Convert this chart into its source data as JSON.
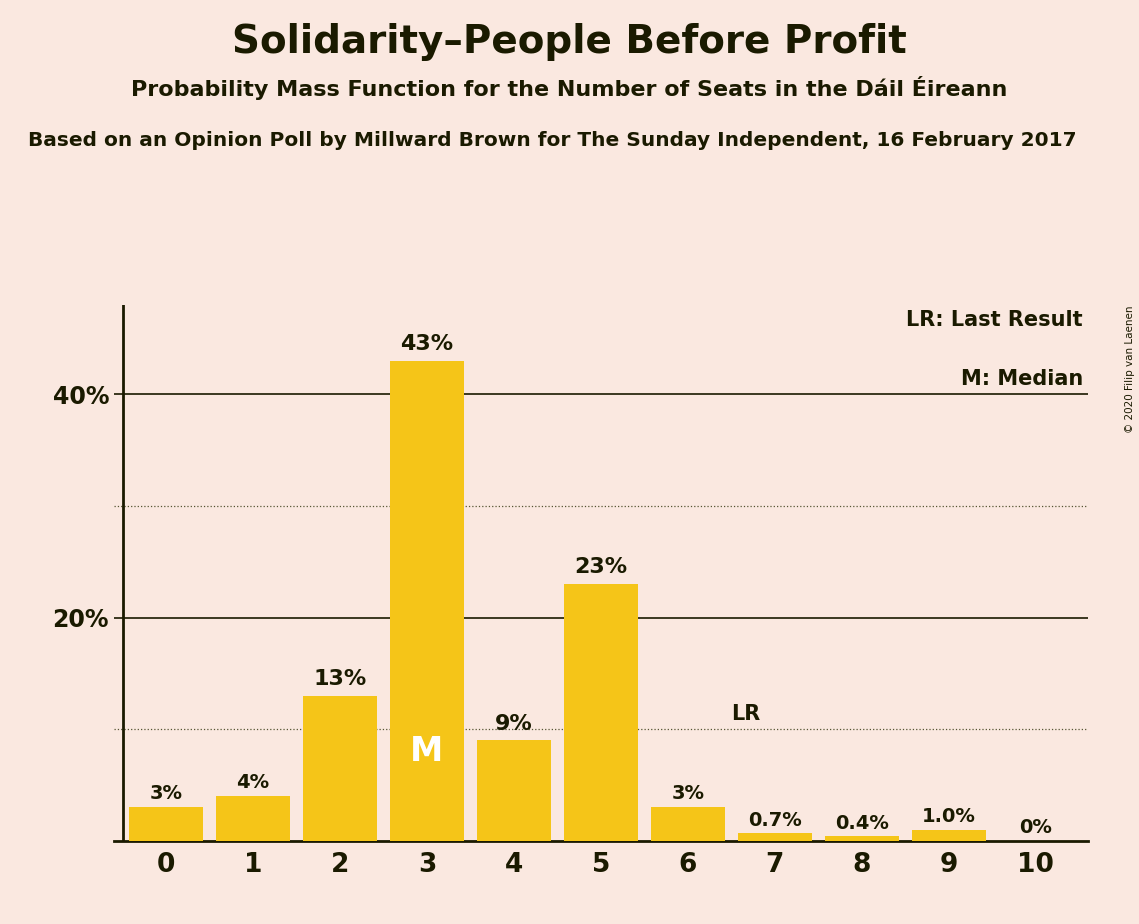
{
  "title": "Solidarity–People Before Profit",
  "subtitle": "Probability Mass Function for the Number of Seats in the Dáil Éireann",
  "source": "Based on an Opinion Poll by Millward Brown for The Sunday Independent, 16 February 2017",
  "copyright": "© 2020 Filip van Laenen",
  "categories": [
    0,
    1,
    2,
    3,
    4,
    5,
    6,
    7,
    8,
    9,
    10
  ],
  "values": [
    3,
    4,
    13,
    43,
    9,
    23,
    3,
    0.7,
    0.4,
    1.0,
    0
  ],
  "labels": [
    "3%",
    "4%",
    "13%",
    "43%",
    "9%",
    "23%",
    "3%",
    "0.7%",
    "0.4%",
    "1.0%",
    "0%"
  ],
  "bar_color": "#F5C518",
  "background_color": "#FAE8E0",
  "text_color": "#1a1a00",
  "ylim": [
    0,
    48
  ],
  "yticks": [
    20,
    40
  ],
  "ytick_labels": [
    "20%",
    "40%"
  ],
  "median_bar": 3,
  "lr_bar": 6,
  "legend_lr": "LR: Last Result",
  "legend_m": "M: Median",
  "dotted_lines": [
    10,
    30
  ],
  "solid_lines": [
    20,
    40
  ],
  "title_fontsize": 28,
  "subtitle_fontsize": 16,
  "source_fontsize": 14.5,
  "bar_label_fontsize_small": 14,
  "bar_label_fontsize_large": 16,
  "legend_fontsize": 15,
  "ytick_fontsize": 17,
  "xtick_fontsize": 19
}
